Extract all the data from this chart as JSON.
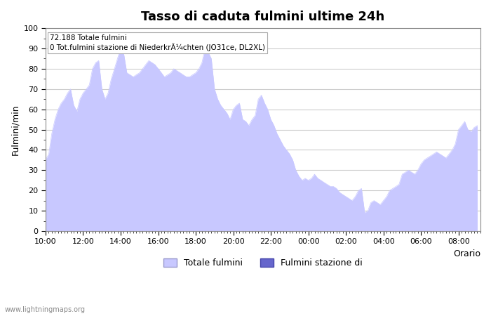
{
  "title": "Tasso di caduta fulmini ultime 24h",
  "xlabel": "Orario",
  "ylabel": "Fulmini/min",
  "annotation_line1": "72.188 Totale fulmini",
  "annotation_line2": "0 Tot.fulmini stazione di NiederkrÃ¼chten (JO31ce, DL2XL)",
  "ylim": [
    0,
    100
  ],
  "yticks": [
    0,
    10,
    20,
    30,
    40,
    50,
    60,
    70,
    80,
    90,
    100
  ],
  "xtick_labels": [
    "10:00",
    "12:00",
    "14:00",
    "16:00",
    "18:00",
    "20:00",
    "22:00",
    "00:00",
    "02:00",
    "04:00",
    "06:00",
    "08:00"
  ],
  "fill_color_total": "#c8c8ff",
  "fill_color_station": "#6666cc",
  "legend_label_total": "Totale fulmini",
  "legend_label_station": "Fulmini stazione di",
  "watermark": "www.lightningmaps.org",
  "background_color": "#ffffff",
  "grid_color": "#cccccc",
  "time_hours": [
    10.0,
    10.17,
    10.33,
    10.5,
    10.67,
    10.83,
    11.0,
    11.17,
    11.33,
    11.5,
    11.67,
    11.83,
    12.0,
    12.17,
    12.33,
    12.5,
    12.67,
    12.83,
    13.0,
    13.17,
    13.33,
    13.5,
    13.67,
    13.83,
    14.0,
    14.17,
    14.33,
    14.5,
    14.67,
    14.83,
    15.0,
    15.17,
    15.33,
    15.5,
    15.67,
    15.83,
    16.0,
    16.17,
    16.33,
    16.5,
    16.67,
    16.83,
    17.0,
    17.17,
    17.33,
    17.5,
    17.67,
    17.83,
    18.0,
    18.17,
    18.33,
    18.5,
    18.67,
    18.83,
    19.0,
    19.17,
    19.33,
    19.5,
    19.67,
    19.83,
    20.0,
    20.17,
    20.33,
    20.5,
    20.67,
    20.83,
    21.0,
    21.17,
    21.33,
    21.5,
    21.67,
    21.83,
    22.0,
    22.17,
    22.33,
    22.5,
    22.67,
    22.83,
    23.0,
    23.17,
    23.33,
    23.5,
    23.67,
    23.83,
    24.0,
    24.17,
    24.33,
    24.5,
    24.67,
    24.83,
    25.0,
    25.17,
    25.33,
    25.5,
    25.67,
    25.83,
    26.0,
    26.17,
    26.33,
    26.5,
    26.67,
    26.83,
    27.0,
    27.17,
    27.33,
    27.5,
    27.67,
    27.83,
    28.0,
    28.17,
    28.33,
    28.5,
    28.67,
    28.83,
    29.0,
    29.17,
    29.33,
    29.5,
    29.67,
    29.83,
    30.0,
    30.17,
    30.33,
    30.5,
    30.67,
    30.83,
    31.0,
    31.17,
    31.33,
    31.5,
    31.67,
    31.83,
    32.0,
    32.17,
    32.33,
    32.5,
    32.67,
    32.83,
    33.0
  ],
  "values_total": [
    35,
    38,
    48,
    55,
    60,
    63,
    65,
    68,
    70,
    62,
    59,
    65,
    68,
    70,
    72,
    80,
    83,
    84,
    70,
    65,
    68,
    75,
    80,
    85,
    90,
    87,
    78,
    77,
    76,
    77,
    78,
    80,
    82,
    84,
    83,
    82,
    80,
    78,
    76,
    77,
    78,
    80,
    79,
    78,
    77,
    76,
    76,
    77,
    78,
    80,
    83,
    90,
    88,
    85,
    70,
    65,
    62,
    60,
    58,
    55,
    60,
    62,
    63,
    55,
    54,
    52,
    55,
    57,
    65,
    67,
    63,
    60,
    55,
    52,
    48,
    45,
    42,
    40,
    38,
    35,
    30,
    27,
    25,
    26,
    25,
    26,
    28,
    26,
    25,
    24,
    23,
    22,
    22,
    21,
    19,
    18,
    17,
    16,
    15,
    17,
    20,
    21,
    9,
    10,
    14,
    15,
    14,
    13,
    15,
    17,
    20,
    21,
    22,
    23,
    28,
    29,
    30,
    29,
    28,
    30,
    33,
    35,
    36,
    37,
    38,
    39,
    38,
    37,
    36,
    38,
    40,
    43,
    50,
    52,
    54,
    50,
    49,
    51,
    52
  ]
}
